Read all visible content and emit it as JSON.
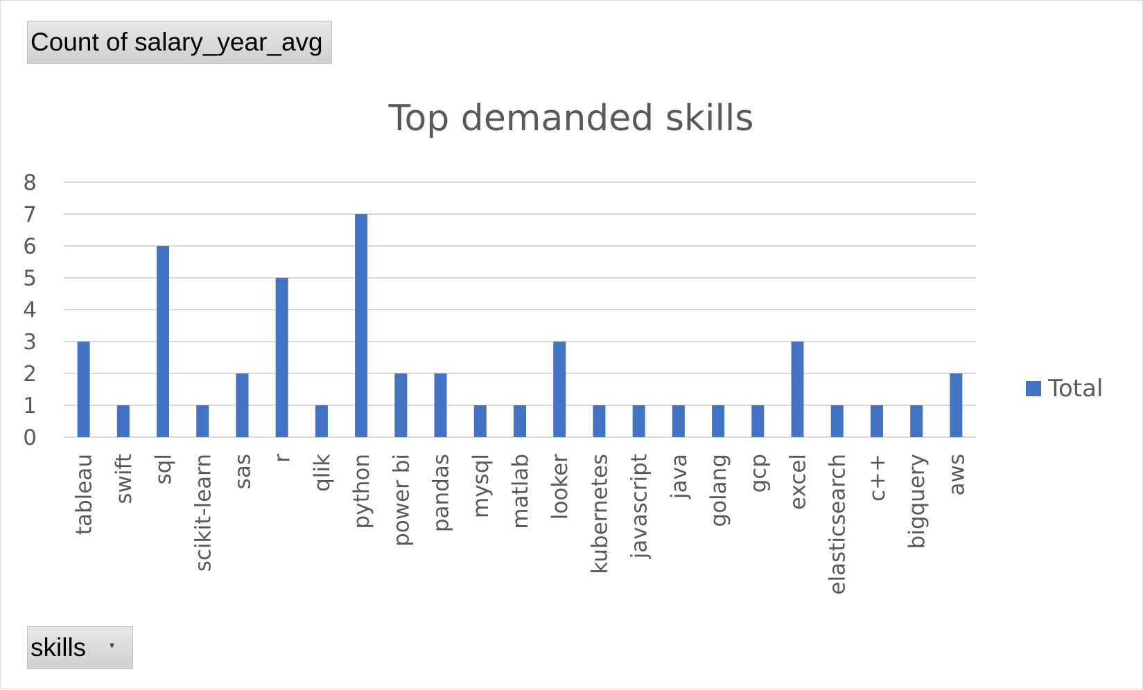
{
  "field_buttons": {
    "values_label": "Count of salary_year_avg",
    "axis_label": "skills",
    "axis_dropdown_glyph": "▾"
  },
  "chart_data": {
    "type": "bar",
    "title": "Top demanded skills",
    "xlabel": "",
    "ylabel": "",
    "ylim": [
      0,
      8
    ],
    "yticks": [
      0,
      1,
      2,
      3,
      4,
      5,
      6,
      7,
      8
    ],
    "grid": true,
    "legend": "right",
    "categories": [
      "tableau",
      "swift",
      "sql",
      "scikit-learn",
      "sas",
      "r",
      "qlik",
      "python",
      "power bi",
      "pandas",
      "mysql",
      "matlab",
      "looker",
      "kubernetes",
      "javascript",
      "java",
      "golang",
      "gcp",
      "excel",
      "elasticsearch",
      "c++",
      "bigquery",
      "aws"
    ],
    "series": [
      {
        "name": "Total",
        "color": "#4472c4",
        "values": [
          3,
          1,
          6,
          1,
          2,
          5,
          1,
          7,
          2,
          2,
          1,
          1,
          3,
          1,
          1,
          1,
          1,
          1,
          3,
          1,
          1,
          1,
          2
        ]
      }
    ]
  }
}
